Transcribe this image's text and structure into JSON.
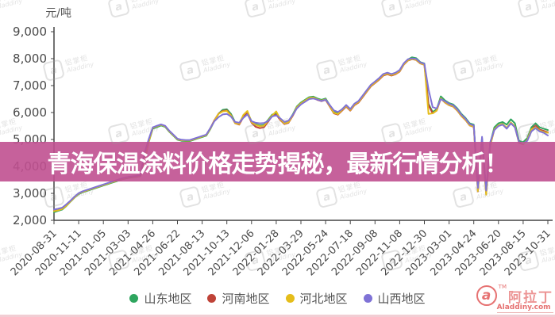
{
  "banner": {
    "title": "青海保温涂料价格走势揭秘，最新行情分析！"
  },
  "watermark": {
    "glyph": "a",
    "brand": "铝掌柜",
    "site": "Aladdiny"
  },
  "footer_logo": {
    "glyph": "a",
    "tm": "TM",
    "brand": "阿拉丁",
    "site": "Aladdiny.com"
  },
  "chart_data": {
    "type": "line",
    "unit_label": "元/吨",
    "grid": false,
    "legend_position": "bottom",
    "y_axis": {
      "min": 2000,
      "max": 9000,
      "step": 1000,
      "tick_labels": [
        "2,000",
        "3,000",
        "4,000",
        "5,000",
        "6,000",
        "7,000",
        "8,000",
        "9,000"
      ]
    },
    "x_labels": [
      "2020-08-31",
      "2020-11-11",
      "2021-01-05",
      "2021-03-03",
      "2021-04-26",
      "2021-06-22",
      "2021-08-13",
      "2021-10-13",
      "2021-12-06",
      "2022-01-28",
      "2022-03-29",
      "2022-05-24",
      "2022-07-18",
      "2022-09-08",
      "2022-11-08",
      "2022-12-30",
      "2023-03-01",
      "2023-04-24",
      "2023-06-20",
      "2023-08-15",
      "2023-10-31"
    ],
    "series": [
      {
        "name": "山东地区",
        "color": "#2ea55e",
        "values": [
          2300,
          2350,
          2400,
          2530,
          2690,
          2840,
          2970,
          3040,
          3090,
          3140,
          3190,
          3240,
          3290,
          3340,
          3390,
          3440,
          3490,
          3540,
          3570,
          3590,
          3610,
          3640,
          4190,
          4890,
          5400,
          5460,
          5520,
          5470,
          5290,
          5140,
          4990,
          4950,
          4940,
          4940,
          4990,
          5040,
          5090,
          5140,
          5390,
          5700,
          5960,
          6100,
          6120,
          5950,
          5640,
          5600,
          5870,
          6020,
          5670,
          5570,
          5520,
          5540,
          5720,
          5920,
          5970,
          5770,
          5620,
          5670,
          5920,
          6220,
          6370,
          6470,
          6570,
          6590,
          6520,
          6470,
          6520,
          6270,
          6020,
          5970,
          6120,
          6270,
          6120,
          6320,
          6420,
          6620,
          6820,
          7020,
          7140,
          7270,
          7420,
          7470,
          7420,
          7470,
          7570,
          7820,
          7970,
          8050,
          8020,
          7870,
          7820,
          6320,
          6020,
          6120,
          6600,
          6450,
          6350,
          6300,
          6150,
          5950,
          5800,
          5600,
          5550,
          3150,
          5050,
          3030,
          4850,
          5450,
          5600,
          5650,
          5550,
          5750,
          5600,
          4950,
          4900,
          5050,
          5450,
          5600,
          5450,
          5400,
          5350
        ]
      },
      {
        "name": "河南地区",
        "color": "#bf4338",
        "values": [
          2380,
          2410,
          2460,
          2580,
          2720,
          2870,
          3000,
          3070,
          3120,
          3170,
          3220,
          3270,
          3320,
          3370,
          3420,
          3470,
          3520,
          3570,
          3600,
          3620,
          3640,
          3670,
          4220,
          4920,
          5440,
          5500,
          5550,
          5500,
          5320,
          5170,
          5020,
          4980,
          4970,
          4970,
          5020,
          5070,
          5120,
          5170,
          5420,
          5720,
          5960,
          6060,
          6080,
          5900,
          5600,
          5550,
          5830,
          5980,
          5620,
          5470,
          5420,
          5450,
          5650,
          5870,
          5920,
          5720,
          5570,
          5620,
          5870,
          6170,
          6320,
          6420,
          6520,
          6540,
          6470,
          6420,
          6470,
          6220,
          5970,
          5920,
          6070,
          6220,
          6070,
          6270,
          6370,
          6570,
          6770,
          6970,
          7090,
          7220,
          7370,
          7420,
          7370,
          7420,
          7520,
          7780,
          7930,
          7980,
          7950,
          7820,
          7770,
          6270,
          5970,
          6070,
          6520,
          6370,
          6270,
          6220,
          6070,
          5870,
          5720,
          5520,
          5470,
          3070,
          4970,
          3000,
          4770,
          5370,
          5520,
          5570,
          5420,
          5620,
          5470,
          4870,
          4820,
          4970,
          5370,
          5520,
          5370,
          5320,
          5270
        ]
      },
      {
        "name": "河北地区",
        "color": "#e5bd1a",
        "values": [
          2340,
          2370,
          2420,
          2540,
          2700,
          2850,
          2990,
          3060,
          3110,
          3160,
          3210,
          3260,
          3310,
          3360,
          3410,
          3460,
          3510,
          3560,
          3590,
          3610,
          3630,
          3660,
          4210,
          4910,
          5430,
          5490,
          5540,
          5490,
          5310,
          5160,
          5010,
          4970,
          4960,
          4960,
          5010,
          5060,
          5110,
          5160,
          5410,
          5710,
          5950,
          6040,
          6060,
          5890,
          5610,
          5570,
          5910,
          6060,
          5640,
          5540,
          5490,
          5510,
          5690,
          5890,
          6040,
          5740,
          5590,
          5640,
          5890,
          6190,
          6340,
          6440,
          6540,
          6560,
          6490,
          6440,
          6490,
          6240,
          5990,
          5940,
          6090,
          6240,
          6090,
          6290,
          6390,
          6590,
          6790,
          6990,
          7110,
          7240,
          7390,
          7440,
          7390,
          7440,
          7540,
          7790,
          7940,
          7990,
          7960,
          7830,
          7780,
          5950,
          5970,
          6070,
          6530,
          6380,
          6280,
          6230,
          6080,
          5880,
          5730,
          5530,
          5480,
          3080,
          4980,
          2950,
          4780,
          5380,
          5530,
          5580,
          5430,
          5630,
          5480,
          4880,
          4830,
          4980,
          5380,
          5450,
          5330,
          5280,
          5250
        ]
      },
      {
        "name": "山西地区",
        "color": "#7f72d6",
        "values": [
          2400,
          2430,
          2470,
          2590,
          2730,
          2880,
          3010,
          3080,
          3130,
          3180,
          3230,
          3280,
          3330,
          3380,
          3430,
          3480,
          3530,
          3580,
          3610,
          3630,
          3650,
          3680,
          4500,
          5000,
          5450,
          5510,
          5560,
          5510,
          5330,
          5180,
          5030,
          4990,
          4980,
          4980,
          5030,
          5080,
          5130,
          5180,
          5430,
          5680,
          5830,
          5930,
          5950,
          5850,
          5650,
          5620,
          5800,
          5930,
          5680,
          5620,
          5600,
          5610,
          5680,
          5850,
          5900,
          5780,
          5650,
          5700,
          5900,
          6150,
          6300,
          6400,
          6500,
          6520,
          6480,
          6430,
          6480,
          6280,
          6080,
          6020,
          6120,
          6280,
          6130,
          6330,
          6430,
          6630,
          6830,
          7030,
          7150,
          7280,
          7430,
          7480,
          7430,
          7480,
          7580,
          7830,
          7980,
          8010,
          7990,
          7860,
          7810,
          6860,
          6200,
          6150,
          6500,
          6420,
          6320,
          6270,
          6120,
          5920,
          5770,
          5570,
          5520,
          3200,
          5100,
          3100,
          4900,
          5350,
          5500,
          5550,
          5400,
          5600,
          5450,
          4900,
          4850,
          4950,
          5300,
          5420,
          5300,
          5250,
          5150
        ]
      }
    ]
  }
}
